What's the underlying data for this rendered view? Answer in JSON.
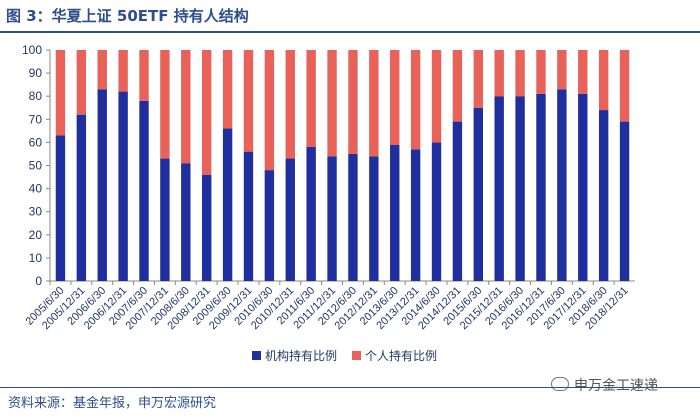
{
  "figure": {
    "title": "图 3：华夏上证 50ETF 持有人结构",
    "source": "资料来源：基金年报，申万宏源研究",
    "watermark": "申万金工速递"
  },
  "chart_data": {
    "type": "bar",
    "stacked": true,
    "categories": [
      "2005/6/30",
      "2005/12/31",
      "2006/6/30",
      "2006/12/31",
      "2007/6/30",
      "2007/12/31",
      "2008/6/30",
      "2008/12/31",
      "2009/6/30",
      "2009/12/31",
      "2010/6/30",
      "2010/12/31",
      "2011/6/30",
      "2011/12/31",
      "2012/6/30",
      "2012/12/31",
      "2013/6/30",
      "2013/12/31",
      "2014/6/30",
      "2014/12/31",
      "2015/6/30",
      "2015/12/31",
      "2016/6/30",
      "2016/12/31",
      "2017/6/30",
      "2017/12/31",
      "2018/6/30",
      "2018/12/31"
    ],
    "series": [
      {
        "name": "机构持有比例",
        "color": "#1f2f9e",
        "values": [
          63,
          72,
          83,
          82,
          78,
          53,
          51,
          46,
          66,
          56,
          48,
          53,
          58,
          54,
          55,
          54,
          59,
          57,
          60,
          69,
          75,
          80,
          80,
          81,
          83,
          81,
          74,
          69
        ]
      },
      {
        "name": "个人持有比例",
        "color": "#e8625a",
        "values": [
          37,
          28,
          17,
          18,
          22,
          47,
          49,
          54,
          34,
          44,
          52,
          47,
          42,
          46,
          45,
          46,
          41,
          43,
          40,
          31,
          25,
          20,
          20,
          19,
          17,
          19,
          26,
          31
        ]
      }
    ],
    "ylim": [
      0,
      100
    ],
    "yticks": [
      0,
      10,
      20,
      30,
      40,
      50,
      60,
      70,
      80,
      90,
      100
    ],
    "legend_position": "bottom",
    "grid": false
  }
}
